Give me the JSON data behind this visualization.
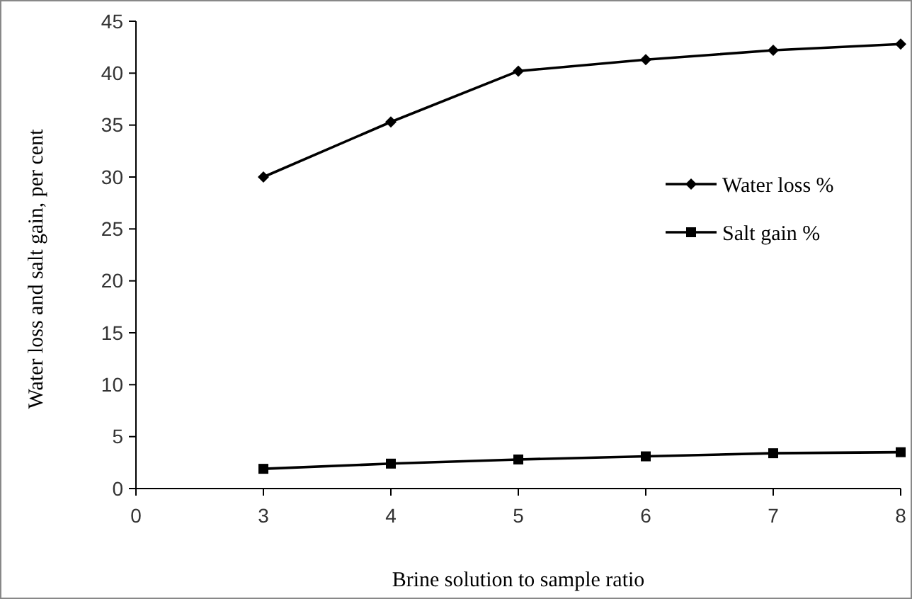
{
  "chart_data": {
    "type": "line",
    "xlabel": "Brine solution to sample ratio",
    "ylabel": "Water loss and salt gain, per cent",
    "categories": [
      "0",
      "3",
      "4",
      "5",
      "6",
      "7",
      "8"
    ],
    "series": [
      {
        "name": "Water loss %",
        "color": "#000000",
        "marker": "diamond",
        "values": [
          null,
          30.0,
          35.3,
          40.2,
          41.3,
          42.2,
          42.8
        ]
      },
      {
        "name": "Salt gain %",
        "color": "#000000",
        "marker": "square",
        "values": [
          null,
          1.9,
          2.4,
          2.8,
          3.1,
          3.4,
          3.5
        ]
      }
    ],
    "ylim": [
      0,
      45
    ],
    "yticks": [
      0,
      5,
      10,
      15,
      20,
      25,
      30,
      35,
      40,
      45
    ],
    "grid": false,
    "legend": "right",
    "line_style": "solid"
  }
}
